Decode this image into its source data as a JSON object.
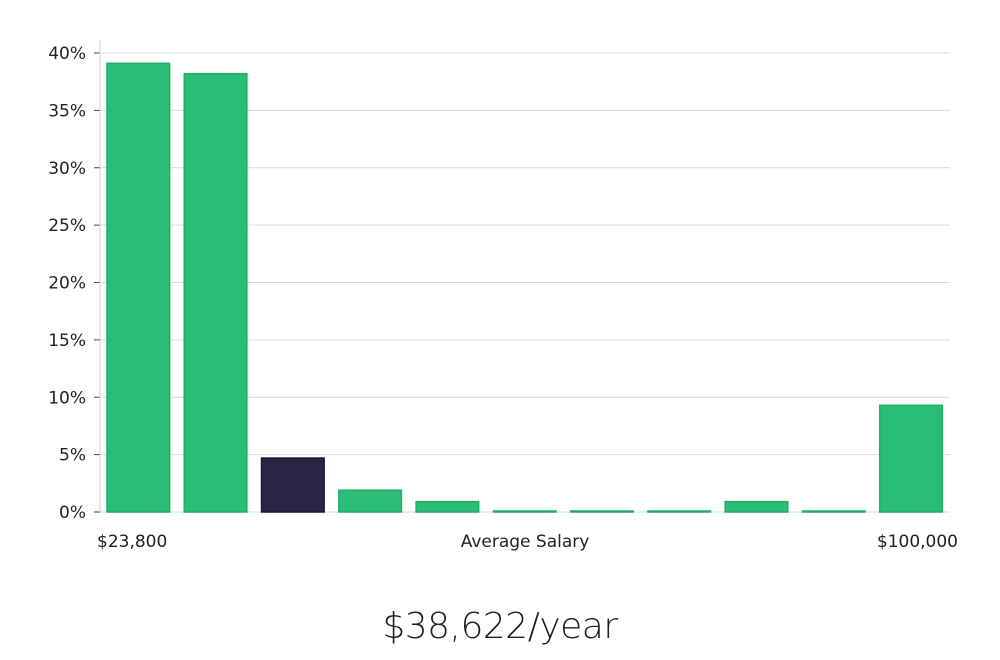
{
  "chart_data": {
    "type": "bar",
    "title": "",
    "xlabel": "Average Salary",
    "ylabel": "",
    "x_min_label": "$23,800",
    "x_max_label": "$100,000",
    "ylim": [
      0,
      40
    ],
    "yticks": [
      0,
      5,
      10,
      15,
      20,
      25,
      30,
      35,
      40
    ],
    "ytick_labels": [
      "0%",
      "5%",
      "10%",
      "15%",
      "20%",
      "25%",
      "30%",
      "35%",
      "40%"
    ],
    "values": [
      39.1,
      38.2,
      4.7,
      1.9,
      0.9,
      0.05,
      0.05,
      0.05,
      0.9,
      0.05,
      9.3
    ],
    "highlight_index": 2,
    "grid": true
  },
  "colors": {
    "bar": "#2bbd77",
    "bar_stroke": "#1fae68",
    "highlight": "#2a2547",
    "grid": "#d9d9d9",
    "axis": "#cccccc"
  },
  "salary_text": "$38,622/year"
}
